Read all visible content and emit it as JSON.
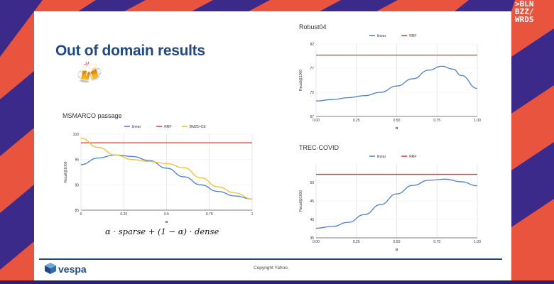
{
  "slide": {
    "title": "Out of domain results",
    "emoji": "🍻",
    "formula": "α · sparse + (1 − α) · dense",
    "footer_brand": "vespa",
    "footer_copyright": "Copyright Yahoo",
    "corner_logo": [
      ">BLN",
      "BZZ/",
      "WRDS"
    ]
  },
  "colors": {
    "linear": "#4a7fd1",
    "rrf": "#d83a33",
    "bm25ce": "#f0c02f",
    "accent": "#1f4a86",
    "background": "#e9543f"
  },
  "chart_data": [
    {
      "type": "line",
      "title": "MSMARCO passage",
      "xlabel": "α",
      "ylabel": "Recall@1000",
      "xlim": [
        0,
        1
      ],
      "ylim": [
        85,
        100
      ],
      "x_ticks": [
        "0",
        "0.25",
        "0.5",
        "0.75",
        "1"
      ],
      "y_ticks": [
        "85",
        "90",
        "95",
        "100"
      ],
      "legend_position": "top",
      "series": [
        {
          "name": "linear",
          "x": [
            0,
            0.1,
            0.2,
            0.3,
            0.4,
            0.5,
            0.6,
            0.7,
            0.8,
            0.9,
            1.0
          ],
          "values": [
            94,
            95.3,
            95.9,
            95.6,
            94.8,
            93.3,
            91.6,
            90.0,
            88.7,
            87.8,
            87.2
          ]
        },
        {
          "name": "RRF",
          "x": [
            0,
            1
          ],
          "values": [
            98.3,
            98.3
          ]
        },
        {
          "name": "BM25+CE",
          "x": [
            0,
            0.1,
            0.2,
            0.3,
            0.4,
            0.5,
            0.6,
            0.7,
            0.8,
            0.9,
            1.0
          ],
          "values": [
            99.2,
            97.4,
            95.9,
            95.0,
            94.6,
            94.2,
            93.4,
            91.4,
            89.6,
            88.4,
            87.2
          ]
        }
      ]
    },
    {
      "type": "line",
      "title": "Robust04",
      "xlabel": "α",
      "ylabel": "Recall@1000",
      "xlim": [
        0,
        1
      ],
      "ylim": [
        67,
        82
      ],
      "x_ticks": [
        "0.00",
        "0.25",
        "0.50",
        "0.75",
        "1.00"
      ],
      "y_ticks": [
        "67",
        "72",
        "77",
        "82"
      ],
      "legend_position": "top",
      "series": [
        {
          "name": "linear",
          "x": [
            0,
            0.1,
            0.2,
            0.3,
            0.4,
            0.5,
            0.6,
            0.7,
            0.78,
            0.85,
            0.9,
            1.0
          ],
          "values": [
            70.2,
            70.5,
            70.9,
            71.3,
            72.0,
            73.3,
            74.8,
            76.6,
            77.4,
            76.8,
            75.5,
            72.8
          ]
        },
        {
          "name": "RRF",
          "x": [
            0,
            1
          ],
          "values": [
            79.7,
            79.7
          ]
        }
      ]
    },
    {
      "type": "line",
      "title": "TREC-COVID",
      "xlabel": "α",
      "ylabel": "Recall@1000",
      "xlim": [
        0,
        1
      ],
      "ylim": [
        35,
        55
      ],
      "x_ticks": [
        "0.00",
        "0.25",
        "0.50",
        "0.75",
        "1.00"
      ],
      "y_ticks": [
        "35",
        "40",
        "45",
        "50"
      ],
      "legend_position": "top",
      "series": [
        {
          "name": "linear",
          "x": [
            0,
            0.1,
            0.2,
            0.3,
            0.4,
            0.5,
            0.6,
            0.7,
            0.8,
            0.9,
            1.0
          ],
          "values": [
            37.6,
            38.1,
            39.2,
            41.3,
            44.0,
            46.9,
            49.2,
            50.6,
            50.9,
            50.2,
            49.1
          ]
        },
        {
          "name": "RRF",
          "x": [
            0,
            1
          ],
          "values": [
            52.2,
            52.2
          ]
        }
      ]
    }
  ]
}
